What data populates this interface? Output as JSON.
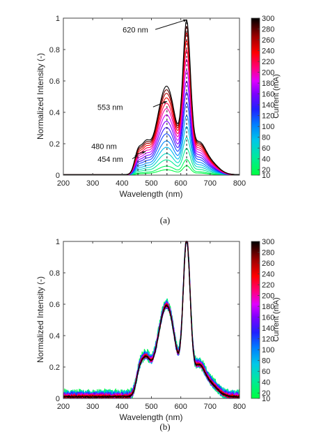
{
  "chart_data": [
    {
      "type": "line",
      "caption": "(a)",
      "xlabel": "Wavelength (nm)",
      "ylabel": "Normalized Intensity (-)",
      "xlim": [
        200,
        800
      ],
      "ylim": [
        0,
        1
      ],
      "xticks": [
        200,
        300,
        400,
        500,
        600,
        700,
        800
      ],
      "yticks": [
        0,
        0.2,
        0.4,
        0.6,
        0.8,
        1
      ],
      "ytick_labels": [
        "0",
        "0.2",
        "0.4",
        "0.6",
        "0.8",
        "1"
      ],
      "colorbar": {
        "label": "Current (mA)",
        "ticks": [
          10,
          20,
          40,
          60,
          80,
          100,
          120,
          140,
          160,
          180,
          200,
          220,
          240,
          260,
          280,
          300
        ],
        "range": [
          10,
          300
        ]
      },
      "series_currents": [
        10,
        20,
        40,
        60,
        80,
        100,
        120,
        140,
        160,
        180,
        200,
        220,
        240,
        260,
        280,
        300
      ],
      "peak_620_values": [
        0.06,
        0.1,
        0.17,
        0.24,
        0.31,
        0.38,
        0.46,
        0.53,
        0.6,
        0.67,
        0.74,
        0.8,
        0.86,
        0.91,
        0.95,
        0.99
      ],
      "annotations": [
        {
          "text": "620 nm",
          "x": 620,
          "y": 0.99
        },
        {
          "text": "553 nm",
          "x": 553,
          "y": 0.47
        },
        {
          "text": "480 nm",
          "x": 480,
          "y": 0.15
        },
        {
          "text": "454 nm",
          "x": 454,
          "y": 0.13
        }
      ],
      "dashed_markers_x": [
        454,
        480,
        553,
        620
      ]
    },
    {
      "type": "line",
      "caption": "(b)",
      "xlabel": "Wavelength (nm)",
      "ylabel": "Normalized Intensity (-)",
      "xlim": [
        200,
        800
      ],
      "ylim": [
        0,
        1
      ],
      "xticks": [
        200,
        300,
        400,
        500,
        600,
        700,
        800
      ],
      "yticks": [
        0,
        0.2,
        0.4,
        0.6,
        0.8,
        1
      ],
      "ytick_labels": [
        "0",
        "0.2",
        "0.4",
        "0.6",
        "0.8",
        "1"
      ],
      "colorbar": {
        "label": "Current (mA)",
        "ticks": [
          10,
          20,
          40,
          60,
          80,
          100,
          120,
          140,
          160,
          180,
          200,
          220,
          240,
          260,
          280,
          300
        ],
        "range": [
          10,
          300
        ]
      },
      "series_currents": [
        10,
        20,
        40,
        60,
        80,
        100,
        120,
        140,
        160,
        180,
        200,
        220,
        240,
        260,
        280,
        300
      ],
      "peak_620_values": [
        1,
        1,
        1,
        1,
        1,
        1,
        1,
        1,
        1,
        1,
        1,
        1,
        1,
        1,
        1,
        1
      ],
      "annotations": [],
      "dashed_markers_x": []
    }
  ]
}
